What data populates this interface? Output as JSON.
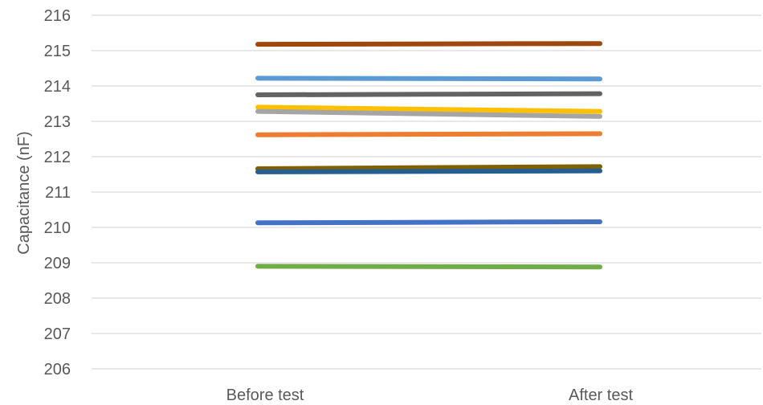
{
  "chart_data": {
    "type": "line",
    "title": "",
    "xlabel": "",
    "ylabel": "Capacitance (nF)",
    "categories": [
      "Before test",
      "After test"
    ],
    "ylim": [
      206,
      216
    ],
    "yticks": [
      "206",
      "207",
      "208",
      "209",
      "210",
      "211",
      "212",
      "213",
      "214",
      "215",
      "216"
    ],
    "grid": true,
    "legend": "none",
    "series": [
      {
        "color": "#9e480e",
        "values": [
          215.18,
          215.2
        ]
      },
      {
        "color": "#5b9bd5",
        "values": [
          214.22,
          214.2
        ]
      },
      {
        "color": "#636363",
        "values": [
          213.75,
          213.78
        ]
      },
      {
        "color": "#ffc000",
        "values": [
          213.4,
          213.28
        ]
      },
      {
        "color": "#a5a5a5",
        "values": [
          213.28,
          213.14
        ]
      },
      {
        "color": "#ed7d31",
        "values": [
          212.62,
          212.65
        ]
      },
      {
        "color": "#806000",
        "values": [
          211.66,
          211.72
        ]
      },
      {
        "color": "#255e91",
        "values": [
          211.57,
          211.6
        ]
      },
      {
        "color": "#4472c4",
        "values": [
          210.13,
          210.16
        ]
      },
      {
        "color": "#70ad47",
        "values": [
          208.9,
          208.88
        ]
      }
    ]
  }
}
